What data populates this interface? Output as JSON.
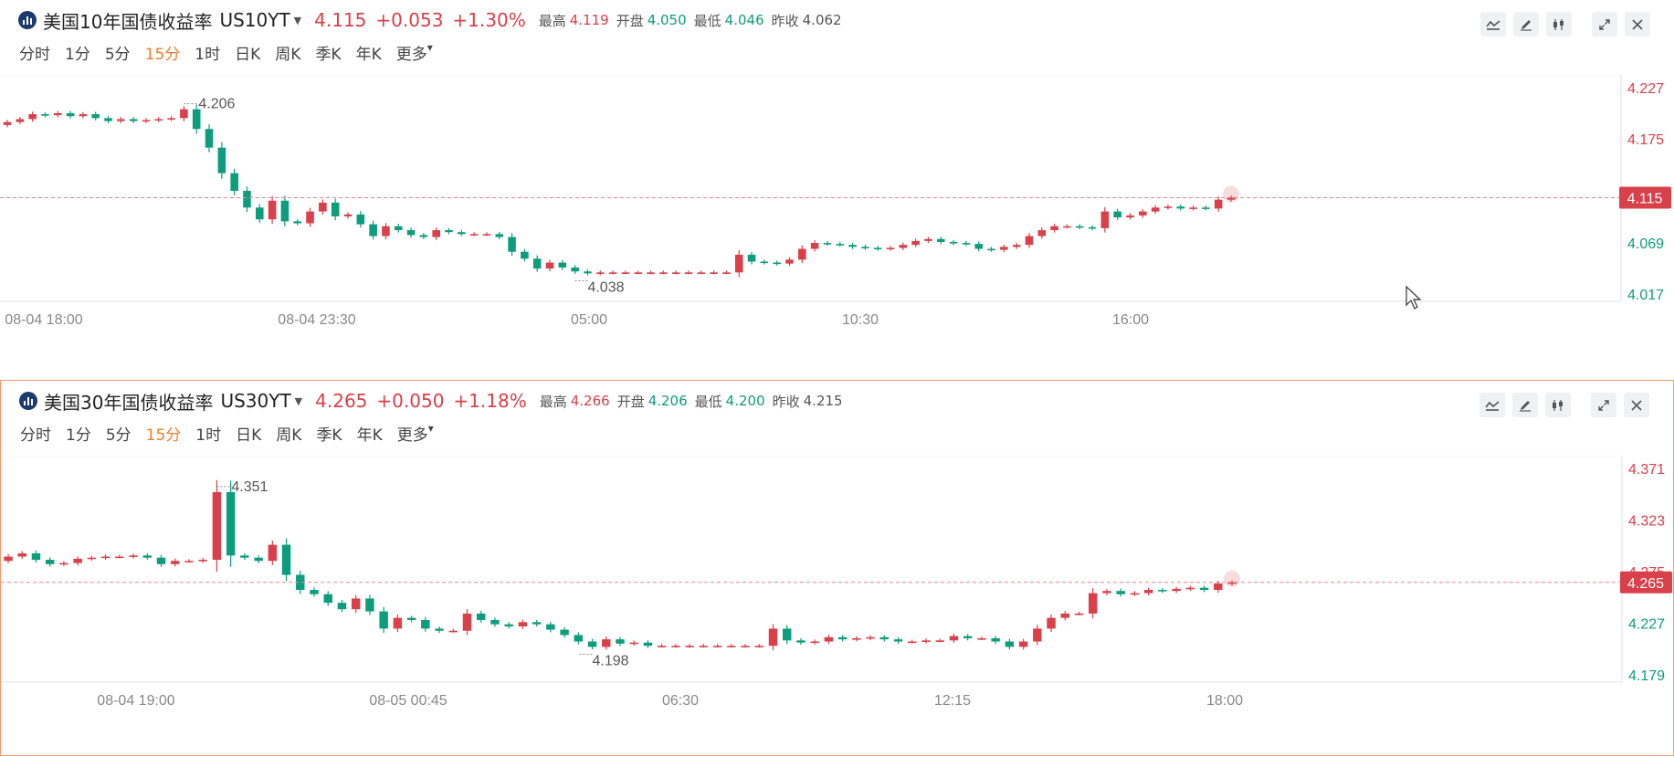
{
  "colors": {
    "up": "#d8404a",
    "down": "#0d9d7c",
    "accent": "#f07d2a"
  },
  "periods": [
    "分时",
    "1分",
    "5分",
    "15分",
    "1时",
    "日K",
    "周K",
    "季K",
    "年K",
    "更多"
  ],
  "active_period": "15分",
  "tool_icons": [
    "indicator-icon",
    "draw-pen-icon",
    "candlestick-icon",
    "expand-icon",
    "close-icon"
  ],
  "quotes": [
    {
      "name": "美国10年国债收益率",
      "symbol": "US10YT",
      "price": "4.115",
      "change": "+0.053",
      "pct": "+1.30%",
      "high_label": "最高",
      "high": "4.119",
      "open_label": "开盘",
      "open": "4.050",
      "low_label": "最低",
      "low": "4.046",
      "prev_label": "昨收",
      "prev": "4.062"
    },
    {
      "name": "美国30年国债收益率",
      "symbol": "US30YT",
      "price": "4.265",
      "change": "+0.050",
      "pct": "+1.18%",
      "high_label": "最高",
      "high": "4.266",
      "open_label": "开盘",
      "open": "4.206",
      "low_label": "最低",
      "low": "4.200",
      "prev_label": "昨收",
      "prev": "4.215"
    }
  ],
  "chart_data": [
    {
      "type": "candlestick",
      "x_labels": [
        "08-04 18:00",
        "08-04 23:30",
        "05:00",
        "10:30",
        "16:00"
      ],
      "y_ticks": [
        "4.227",
        "4.175",
        "4.115",
        "4.069",
        "4.017"
      ],
      "ylim": [
        4.017,
        4.227
      ],
      "last_price": "4.115",
      "max_label": "4.206",
      "min_label": "4.038",
      "closes": [
        4.192,
        4.195,
        4.2,
        4.199,
        4.201,
        4.198,
        4.2,
        4.196,
        4.193,
        4.195,
        4.193,
        4.194,
        4.195,
        4.196,
        4.205,
        4.185,
        4.166,
        4.14,
        4.122,
        4.105,
        4.093,
        4.112,
        4.091,
        4.089,
        4.101,
        4.11,
        4.096,
        4.098,
        4.088,
        4.076,
        4.086,
        4.082,
        4.077,
        4.075,
        4.082,
        4.08,
        4.078,
        4.078,
        4.078,
        4.075,
        4.06,
        4.053,
        4.043,
        4.049,
        4.044,
        4.04,
        4.038,
        4.039,
        4.039,
        4.039,
        4.039,
        4.039,
        4.039,
        4.039,
        4.039,
        4.039,
        4.039,
        4.039,
        4.057,
        4.05,
        4.049,
        4.048,
        4.052,
        4.063,
        4.069,
        4.068,
        4.067,
        4.065,
        4.064,
        4.063,
        4.064,
        4.067,
        4.071,
        4.073,
        4.07,
        4.069,
        4.068,
        4.063,
        4.062,
        4.065,
        4.067,
        4.076,
        4.082,
        4.086,
        4.086,
        4.085,
        4.084,
        4.101,
        4.095,
        4.097,
        4.101,
        4.105,
        4.106,
        4.104,
        4.105,
        4.104,
        4.113,
        4.115
      ]
    },
    {
      "type": "candlestick",
      "x_labels": [
        "08-04 19:00",
        "08-05 00:45",
        "06:30",
        "12:15",
        "18:00"
      ],
      "y_ticks": [
        "4.371",
        "4.323",
        "4.275",
        "4.227",
        "4.179"
      ],
      "ylim": [
        4.179,
        4.371
      ],
      "last_price": "4.265",
      "max_label": "4.351",
      "min_label": "4.198",
      "closes": [
        4.289,
        4.292,
        4.286,
        4.282,
        4.283,
        4.287,
        4.288,
        4.289,
        4.289,
        4.29,
        4.288,
        4.282,
        4.285,
        4.285,
        4.286,
        4.349,
        4.29,
        4.288,
        4.285,
        4.3,
        4.272,
        4.258,
        4.254,
        4.246,
        4.24,
        4.25,
        4.238,
        4.222,
        4.232,
        4.23,
        4.222,
        4.22,
        4.22,
        4.236,
        4.23,
        4.226,
        4.224,
        4.228,
        4.226,
        4.221,
        4.216,
        4.21,
        4.205,
        4.212,
        4.208,
        4.209,
        4.206,
        4.206,
        4.206,
        4.206,
        4.206,
        4.206,
        4.206,
        4.206,
        4.206,
        4.222,
        4.211,
        4.209,
        4.21,
        4.214,
        4.212,
        4.213,
        4.214,
        4.212,
        4.21,
        4.21,
        4.211,
        4.211,
        4.215,
        4.213,
        4.213,
        4.21,
        4.205,
        4.21,
        4.222,
        4.232,
        4.236,
        4.236,
        4.255,
        4.257,
        4.254,
        4.255,
        4.258,
        4.257,
        4.259,
        4.26,
        4.258,
        4.264,
        4.265
      ]
    }
  ]
}
